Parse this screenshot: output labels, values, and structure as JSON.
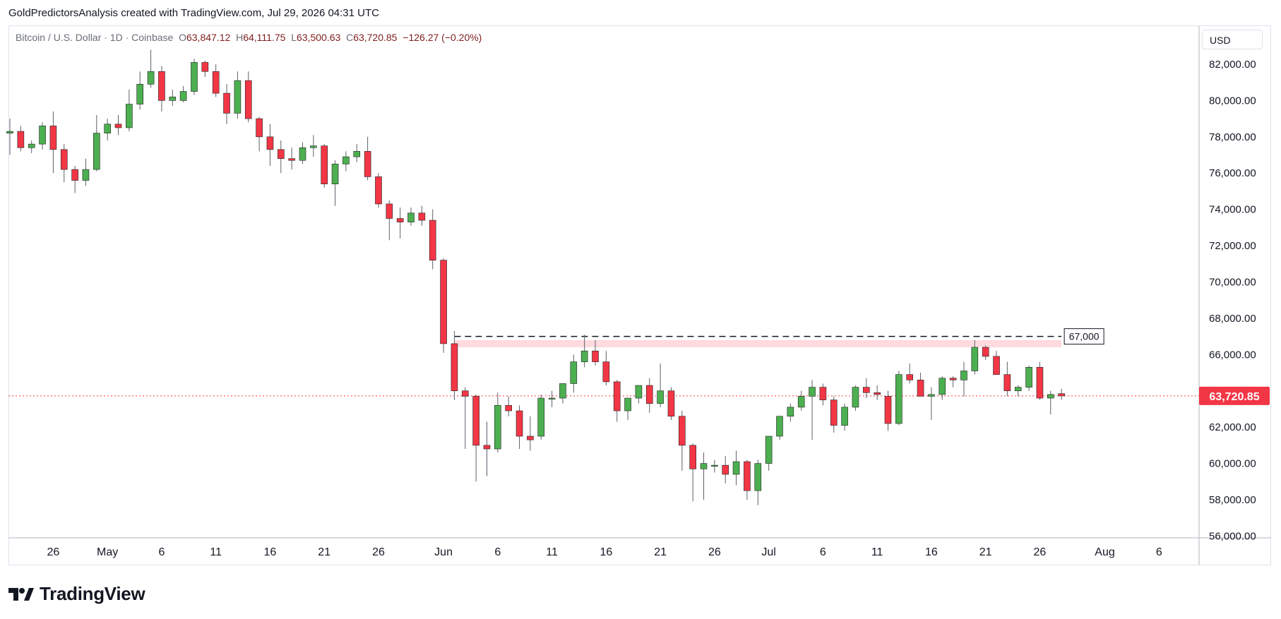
{
  "header": {
    "attribution": "GoldPredictorsAnalysis created with TradingView.com, Jul 29, 2026 04:31 UTC"
  },
  "legend": {
    "symbol": "Bitcoin / U.S. Dollar · 1D · Coinbase",
    "open_label": "O",
    "open": "63,847.12",
    "high_label": "H",
    "high": "64,111.75",
    "low_label": "L",
    "low": "63,500.63",
    "close_label": "C",
    "close": "63,720.85",
    "change": "−126.27 (−0.20%)"
  },
  "currency_button": "USD",
  "brand": {
    "name": "TradingView"
  },
  "colors": {
    "up": "#4caf50",
    "down": "#f23645",
    "wick": "#5d606b",
    "last_price": "#f23645",
    "zone": "#ffd6db"
  },
  "chart_data": {
    "type": "candlestick",
    "title": "Bitcoin / U.S. Dollar · 1D · Coinbase",
    "x_ticks": [
      {
        "label": "26",
        "date": "2026-04-26"
      },
      {
        "label": "May",
        "date": "2026-05-01"
      },
      {
        "label": "6",
        "date": "2026-05-06"
      },
      {
        "label": "11",
        "date": "2026-05-11"
      },
      {
        "label": "16",
        "date": "2026-05-16"
      },
      {
        "label": "21",
        "date": "2026-05-21"
      },
      {
        "label": "26",
        "date": "2026-05-26"
      },
      {
        "label": "Jun",
        "date": "2026-06-01"
      },
      {
        "label": "6",
        "date": "2026-06-06"
      },
      {
        "label": "11",
        "date": "2026-06-11"
      },
      {
        "label": "16",
        "date": "2026-06-16"
      },
      {
        "label": "21",
        "date": "2026-06-21"
      },
      {
        "label": "26",
        "date": "2026-06-26"
      },
      {
        "label": "Jul",
        "date": "2026-07-01"
      },
      {
        "label": "6",
        "date": "2026-07-06"
      },
      {
        "label": "11",
        "date": "2026-07-11"
      },
      {
        "label": "16",
        "date": "2026-07-16"
      },
      {
        "label": "21",
        "date": "2026-07-21"
      },
      {
        "label": "26",
        "date": "2026-07-26"
      },
      {
        "label": "Aug",
        "date": "2026-08-01"
      },
      {
        "label": "6",
        "date": "2026-08-06"
      }
    ],
    "x_range": [
      "2026-04-22",
      "2026-08-08"
    ],
    "y_ticks": [
      "56,000.00",
      "58,000.00",
      "60,000.00",
      "62,000.00",
      "64,000.00",
      "66,000.00",
      "68,000.00",
      "70,000.00",
      "72,000.00",
      "74,000.00",
      "76,000.00",
      "78,000.00",
      "80,000.00",
      "82,000.00"
    ],
    "y_range": [
      55900,
      84100
    ],
    "candles": [
      {
        "date": "2026-04-22",
        "o": 78200,
        "h": 79000,
        "l": 77000,
        "c": 78300
      },
      {
        "date": "2026-04-23",
        "o": 78300,
        "h": 78600,
        "l": 77200,
        "c": 77400
      },
      {
        "date": "2026-04-24",
        "o": 77400,
        "h": 77800,
        "l": 77100,
        "c": 77600
      },
      {
        "date": "2026-04-25",
        "o": 77600,
        "h": 78800,
        "l": 77300,
        "c": 78600
      },
      {
        "date": "2026-04-26",
        "o": 78600,
        "h": 79400,
        "l": 76000,
        "c": 77300
      },
      {
        "date": "2026-04-27",
        "o": 77300,
        "h": 77600,
        "l": 75500,
        "c": 76200
      },
      {
        "date": "2026-04-28",
        "o": 76200,
        "h": 76400,
        "l": 74900,
        "c": 75600
      },
      {
        "date": "2026-04-29",
        "o": 75600,
        "h": 76800,
        "l": 75300,
        "c": 76200
      },
      {
        "date": "2026-04-30",
        "o": 76200,
        "h": 79200,
        "l": 76100,
        "c": 78200
      },
      {
        "date": "2026-05-01",
        "o": 78200,
        "h": 79000,
        "l": 77800,
        "c": 78700
      },
      {
        "date": "2026-05-02",
        "o": 78700,
        "h": 79200,
        "l": 78100,
        "c": 78500
      },
      {
        "date": "2026-05-03",
        "o": 78500,
        "h": 80600,
        "l": 78300,
        "c": 79800
      },
      {
        "date": "2026-05-04",
        "o": 79800,
        "h": 81600,
        "l": 79500,
        "c": 80900
      },
      {
        "date": "2026-05-05",
        "o": 80900,
        "h": 82800,
        "l": 80700,
        "c": 81600
      },
      {
        "date": "2026-05-06",
        "o": 81600,
        "h": 81900,
        "l": 79400,
        "c": 80000
      },
      {
        "date": "2026-05-07",
        "o": 80000,
        "h": 80600,
        "l": 79700,
        "c": 80200
      },
      {
        "date": "2026-05-08",
        "o": 80000,
        "h": 80800,
        "l": 79900,
        "c": 80500
      },
      {
        "date": "2026-05-09",
        "o": 80500,
        "h": 82300,
        "l": 80300,
        "c": 82100
      },
      {
        "date": "2026-05-10",
        "o": 82100,
        "h": 82200,
        "l": 81300,
        "c": 81600
      },
      {
        "date": "2026-05-11",
        "o": 81600,
        "h": 82000,
        "l": 80200,
        "c": 80400
      },
      {
        "date": "2026-05-12",
        "o": 80400,
        "h": 80900,
        "l": 78700,
        "c": 79300
      },
      {
        "date": "2026-05-13",
        "o": 79300,
        "h": 81600,
        "l": 79000,
        "c": 81100
      },
      {
        "date": "2026-05-14",
        "o": 81100,
        "h": 81600,
        "l": 78800,
        "c": 79000
      },
      {
        "date": "2026-05-15",
        "o": 79000,
        "h": 79100,
        "l": 77200,
        "c": 78000
      },
      {
        "date": "2026-05-16",
        "o": 78000,
        "h": 78700,
        "l": 76400,
        "c": 77300
      },
      {
        "date": "2026-05-17",
        "o": 77300,
        "h": 77800,
        "l": 76000,
        "c": 76800
      },
      {
        "date": "2026-05-18",
        "o": 76800,
        "h": 77400,
        "l": 76200,
        "c": 76700
      },
      {
        "date": "2026-05-19",
        "o": 76700,
        "h": 77700,
        "l": 76500,
        "c": 77400
      },
      {
        "date": "2026-05-20",
        "o": 77400,
        "h": 78100,
        "l": 76900,
        "c": 77500
      },
      {
        "date": "2026-05-21",
        "o": 77500,
        "h": 77600,
        "l": 75200,
        "c": 75400
      },
      {
        "date": "2026-05-22",
        "o": 75400,
        "h": 76700,
        "l": 74200,
        "c": 76500
      },
      {
        "date": "2026-05-23",
        "o": 76500,
        "h": 77200,
        "l": 76100,
        "c": 76900
      },
      {
        "date": "2026-05-24",
        "o": 76900,
        "h": 77600,
        "l": 76600,
        "c": 77200
      },
      {
        "date": "2026-05-25",
        "o": 77200,
        "h": 78000,
        "l": 75600,
        "c": 75800
      },
      {
        "date": "2026-05-26",
        "o": 75800,
        "h": 76000,
        "l": 74100,
        "c": 74300
      },
      {
        "date": "2026-05-27",
        "o": 74300,
        "h": 74500,
        "l": 72300,
        "c": 73500
      },
      {
        "date": "2026-05-28",
        "o": 73500,
        "h": 74100,
        "l": 72400,
        "c": 73300
      },
      {
        "date": "2026-05-29",
        "o": 73300,
        "h": 74100,
        "l": 73100,
        "c": 73800
      },
      {
        "date": "2026-05-30",
        "o": 73800,
        "h": 74200,
        "l": 73100,
        "c": 73400
      },
      {
        "date": "2026-05-31",
        "o": 73400,
        "h": 74000,
        "l": 70700,
        "c": 71200
      },
      {
        "date": "2026-06-01",
        "o": 71200,
        "h": 71300,
        "l": 66100,
        "c": 66600
      },
      {
        "date": "2026-06-02",
        "o": 66600,
        "h": 67300,
        "l": 63500,
        "c": 64000
      },
      {
        "date": "2026-06-03",
        "o": 64000,
        "h": 64200,
        "l": 60800,
        "c": 63700
      },
      {
        "date": "2026-06-04",
        "o": 63700,
        "h": 63800,
        "l": 59000,
        "c": 61000
      },
      {
        "date": "2026-06-05",
        "o": 61000,
        "h": 62300,
        "l": 59300,
        "c": 60800
      },
      {
        "date": "2026-06-06",
        "o": 60800,
        "h": 63900,
        "l": 60600,
        "c": 63200
      },
      {
        "date": "2026-06-07",
        "o": 63200,
        "h": 63700,
        "l": 62600,
        "c": 62900
      },
      {
        "date": "2026-06-08",
        "o": 62900,
        "h": 63200,
        "l": 60800,
        "c": 61500
      },
      {
        "date": "2026-06-09",
        "o": 61500,
        "h": 62600,
        "l": 60700,
        "c": 61300
      },
      {
        "date": "2026-06-10",
        "o": 61500,
        "h": 63800,
        "l": 61300,
        "c": 63600
      },
      {
        "date": "2026-06-11",
        "o": 63600,
        "h": 64000,
        "l": 63100,
        "c": 63600
      },
      {
        "date": "2026-06-12",
        "o": 63600,
        "h": 64400,
        "l": 63300,
        "c": 64400
      },
      {
        "date": "2026-06-13",
        "o": 64400,
        "h": 66000,
        "l": 63900,
        "c": 65600
      },
      {
        "date": "2026-06-14",
        "o": 65600,
        "h": 67100,
        "l": 65300,
        "c": 66200
      },
      {
        "date": "2026-06-15",
        "o": 66200,
        "h": 66800,
        "l": 65400,
        "c": 65600
      },
      {
        "date": "2026-06-16",
        "o": 65600,
        "h": 66200,
        "l": 64300,
        "c": 64500
      },
      {
        "date": "2026-06-17",
        "o": 64500,
        "h": 64600,
        "l": 62300,
        "c": 62900
      },
      {
        "date": "2026-06-18",
        "o": 62900,
        "h": 63600,
        "l": 62400,
        "c": 63600
      },
      {
        "date": "2026-06-19",
        "o": 63600,
        "h": 64300,
        "l": 63300,
        "c": 64300
      },
      {
        "date": "2026-06-20",
        "o": 64300,
        "h": 64700,
        "l": 62800,
        "c": 63300
      },
      {
        "date": "2026-06-21",
        "o": 63300,
        "h": 65500,
        "l": 63100,
        "c": 64000
      },
      {
        "date": "2026-06-22",
        "o": 64000,
        "h": 64200,
        "l": 62400,
        "c": 62600
      },
      {
        "date": "2026-06-23",
        "o": 62600,
        "h": 62900,
        "l": 59600,
        "c": 61000
      },
      {
        "date": "2026-06-24",
        "o": 61000,
        "h": 61100,
        "l": 57900,
        "c": 59700
      },
      {
        "date": "2026-06-25",
        "o": 59700,
        "h": 60600,
        "l": 58000,
        "c": 60000
      },
      {
        "date": "2026-06-26",
        "o": 59900,
        "h": 60200,
        "l": 59500,
        "c": 59900
      },
      {
        "date": "2026-06-27",
        "o": 59900,
        "h": 60400,
        "l": 58900,
        "c": 59400
      },
      {
        "date": "2026-06-28",
        "o": 59400,
        "h": 60700,
        "l": 58800,
        "c": 60100
      },
      {
        "date": "2026-06-29",
        "o": 60100,
        "h": 60200,
        "l": 58000,
        "c": 58500
      },
      {
        "date": "2026-06-30",
        "o": 58500,
        "h": 60200,
        "l": 57700,
        "c": 60000
      },
      {
        "date": "2026-07-01",
        "o": 60000,
        "h": 61500,
        "l": 59600,
        "c": 61500
      },
      {
        "date": "2026-07-02",
        "o": 61500,
        "h": 62600,
        "l": 61300,
        "c": 62600
      },
      {
        "date": "2026-07-03",
        "o": 62600,
        "h": 63300,
        "l": 62300,
        "c": 63100
      },
      {
        "date": "2026-07-04",
        "o": 63100,
        "h": 64000,
        "l": 62900,
        "c": 63700
      },
      {
        "date": "2026-07-05",
        "o": 63700,
        "h": 64600,
        "l": 61300,
        "c": 64200
      },
      {
        "date": "2026-07-06",
        "o": 64200,
        "h": 64400,
        "l": 63200,
        "c": 63500
      },
      {
        "date": "2026-07-07",
        "o": 63500,
        "h": 63700,
        "l": 61700,
        "c": 62100
      },
      {
        "date": "2026-07-08",
        "o": 62100,
        "h": 63300,
        "l": 61800,
        "c": 63100
      },
      {
        "date": "2026-07-09",
        "o": 63100,
        "h": 64300,
        "l": 62900,
        "c": 64200
      },
      {
        "date": "2026-07-10",
        "o": 64200,
        "h": 64700,
        "l": 63600,
        "c": 63900
      },
      {
        "date": "2026-07-11",
        "o": 63900,
        "h": 64300,
        "l": 63500,
        "c": 63800
      },
      {
        "date": "2026-07-12",
        "o": 63700,
        "h": 64000,
        "l": 61800,
        "c": 62200
      },
      {
        "date": "2026-07-13",
        "o": 62200,
        "h": 65100,
        "l": 62100,
        "c": 64900
      },
      {
        "date": "2026-07-14",
        "o": 64900,
        "h": 65500,
        "l": 64400,
        "c": 64600
      },
      {
        "date": "2026-07-15",
        "o": 64600,
        "h": 65000,
        "l": 63700,
        "c": 63700
      },
      {
        "date": "2026-07-16",
        "o": 63700,
        "h": 64200,
        "l": 62400,
        "c": 63800
      },
      {
        "date": "2026-07-17",
        "o": 63800,
        "h": 64800,
        "l": 63500,
        "c": 64700
      },
      {
        "date": "2026-07-18",
        "o": 64700,
        "h": 64800,
        "l": 64200,
        "c": 64600
      },
      {
        "date": "2026-07-19",
        "o": 64600,
        "h": 65600,
        "l": 63700,
        "c": 65100
      },
      {
        "date": "2026-07-20",
        "o": 65100,
        "h": 66800,
        "l": 64900,
        "c": 66400
      },
      {
        "date": "2026-07-21",
        "o": 66400,
        "h": 66500,
        "l": 65700,
        "c": 65900
      },
      {
        "date": "2026-07-22",
        "o": 65900,
        "h": 66200,
        "l": 64900,
        "c": 64900
      },
      {
        "date": "2026-07-23",
        "o": 64900,
        "h": 65600,
        "l": 63700,
        "c": 64000
      },
      {
        "date": "2026-07-24",
        "o": 64000,
        "h": 64300,
        "l": 63700,
        "c": 64200
      },
      {
        "date": "2026-07-25",
        "o": 64200,
        "h": 65400,
        "l": 64000,
        "c": 65300
      },
      {
        "date": "2026-07-26",
        "o": 65300,
        "h": 65600,
        "l": 63500,
        "c": 63600
      },
      {
        "date": "2026-07-27",
        "o": 63600,
        "h": 64000,
        "l": 62700,
        "c": 63800
      },
      {
        "date": "2026-07-28",
        "o": 63847.12,
        "h": 64111.75,
        "l": 63500.63,
        "c": 63720.85
      }
    ],
    "annotations": {
      "resistance_level": 67000,
      "resistance_label": "67,000",
      "resistance_start": "2026-06-02",
      "resistance_end": "2026-07-28",
      "zone_low": 66400,
      "zone_high": 66800,
      "last_price": 63720.85,
      "last_price_label": "63,720.85"
    }
  }
}
